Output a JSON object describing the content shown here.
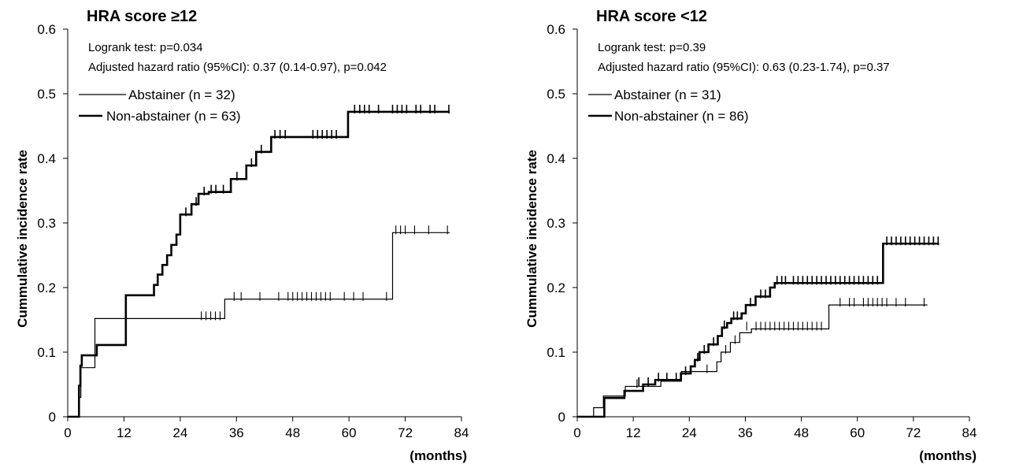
{
  "chart_data": [
    {
      "type": "line",
      "subtype": "step",
      "title": "HRA score ≥12",
      "annotations": [
        "Logrank test:  p=0.034",
        "Adjusted hazard ratio (95%CI):  0.37 (0.14-0.97), p=0.042"
      ],
      "ylabel": "Cummulative incidence rate",
      "xlabel": "(months)",
      "xlim": [
        0,
        84
      ],
      "ylim": [
        0,
        0.6
      ],
      "xticks": [
        0,
        12,
        24,
        36,
        48,
        60,
        72,
        84
      ],
      "yticks": [
        0,
        0.1,
        0.2,
        0.3,
        0.4,
        0.5,
        0.6
      ],
      "xtick_labels": [
        "0",
        "12",
        "24",
        "36",
        "48",
        "60",
        "72",
        "84"
      ],
      "ytick_labels": [
        "0",
        "0.1",
        "0.2",
        "0.3",
        "0.4",
        "0.5",
        "0.6"
      ],
      "grid": false,
      "legend_position": "top-left",
      "series": [
        {
          "name": "Abstainer (n = 32)",
          "style": "thin",
          "x": [
            0,
            2.5,
            2.8,
            3.8,
            4.8,
            5.8,
            33.5,
            69.3,
            81.5
          ],
          "y": [
            0,
            0.03,
            0.076,
            0.076,
            0.076,
            0.152,
            0.182,
            0.285,
            0.285
          ],
          "censored_x": [
            28.5,
            29.5,
            30.5,
            31.5,
            32.5,
            35.5,
            37,
            41,
            45,
            47,
            48,
            49,
            50,
            51,
            52,
            53,
            54,
            55,
            56,
            59,
            61,
            63,
            68,
            70,
            71,
            72,
            74,
            77,
            81
          ],
          "censored_y": [
            0.152,
            0.152,
            0.152,
            0.152,
            0.152,
            0.182,
            0.182,
            0.182,
            0.182,
            0.182,
            0.182,
            0.182,
            0.182,
            0.182,
            0.182,
            0.182,
            0.182,
            0.182,
            0.182,
            0.182,
            0.182,
            0.182,
            0.182,
            0.285,
            0.285,
            0.285,
            0.285,
            0.285,
            0.285
          ]
        },
        {
          "name": "Non-abstainer (n = 63)",
          "style": "thick",
          "x": [
            0,
            2.4,
            2.7,
            3,
            5.7,
            6.2,
            12.4,
            18.4,
            19.2,
            20.2,
            21.2,
            22.1,
            23.2,
            24,
            26.4,
            27.9,
            30.1,
            34.8,
            38.1,
            40.2,
            42.3,
            43.4,
            59.8,
            81.5
          ],
          "y": [
            0,
            0.048,
            0.079,
            0.095,
            0.095,
            0.111,
            0.188,
            0.204,
            0.22,
            0.235,
            0.25,
            0.266,
            0.282,
            0.313,
            0.329,
            0.345,
            0.348,
            0.368,
            0.389,
            0.41,
            0.41,
            0.433,
            0.472,
            0.472
          ],
          "censored_x": [
            25.2,
            27.4,
            29.1,
            30.6,
            31.6,
            33.2,
            36.1,
            39.2,
            41.3,
            44.2,
            45.3,
            46.4,
            52.3,
            53.3,
            54.3,
            55.3,
            56.3,
            57.3,
            61.2,
            62.3,
            63.3,
            64.3,
            66.3,
            69.3,
            70.3,
            71.3,
            72.3,
            74.3,
            75.3,
            77.3,
            78.3,
            81.3
          ],
          "censored_y": [
            0.313,
            0.329,
            0.345,
            0.348,
            0.348,
            0.348,
            0.368,
            0.389,
            0.41,
            0.433,
            0.433,
            0.433,
            0.433,
            0.433,
            0.433,
            0.433,
            0.433,
            0.433,
            0.472,
            0.472,
            0.472,
            0.472,
            0.472,
            0.472,
            0.472,
            0.472,
            0.472,
            0.472,
            0.472,
            0.472,
            0.472,
            0.472
          ]
        }
      ]
    },
    {
      "type": "line",
      "subtype": "step",
      "title": "HRA score <12",
      "annotations": [
        "Logrank test:  p=0.39",
        "Adjusted hazard ratio (95%CI):  0.63 (0.23-1.74), p=0.37"
      ],
      "ylabel": "Cummulative incidence rate",
      "xlabel": "(months)",
      "xlim": [
        0,
        84
      ],
      "ylim": [
        0,
        0.6
      ],
      "xticks": [
        0,
        12,
        24,
        36,
        48,
        60,
        72,
        84
      ],
      "yticks": [
        0,
        0.1,
        0.2,
        0.3,
        0.4,
        0.5,
        0.6
      ],
      "xtick_labels": [
        "0",
        "12",
        "24",
        "36",
        "48",
        "60",
        "72",
        "84"
      ],
      "ytick_labels": [
        "0",
        "0.1",
        "0.2",
        "0.3",
        "0.4",
        "0.5",
        "0.6"
      ],
      "grid": false,
      "legend_position": "top-left",
      "series": [
        {
          "name": "Abstainer (n = 31)",
          "style": "thin",
          "x": [
            0,
            3.5,
            5.6,
            10.3,
            12.3,
            17.9,
            22.3,
            25.2,
            29.9,
            30.8,
            32.8,
            34.8,
            37.3,
            53.9,
            75
          ],
          "y": [
            0,
            0.014,
            0.032,
            0.047,
            0.047,
            0.055,
            0.07,
            0.07,
            0.085,
            0.1,
            0.115,
            0.13,
            0.136,
            0.173,
            0.173
          ],
          "censored_x": [
            12.8,
            27.8,
            31.8,
            33.8,
            36.3,
            38.3,
            39.3,
            40.3,
            41.3,
            42.3,
            43.3,
            44.3,
            45.3,
            46.3,
            47.3,
            48.3,
            49.3,
            50.3,
            51.3,
            52.3,
            56.3,
            58.3,
            59.3,
            61.3,
            62.3,
            63.3,
            64.3,
            65.3,
            66.3,
            68.3,
            70.3,
            74.3
          ],
          "censored_y": [
            0.047,
            0.07,
            0.1,
            0.115,
            0.136,
            0.136,
            0.136,
            0.136,
            0.136,
            0.136,
            0.136,
            0.136,
            0.136,
            0.136,
            0.136,
            0.136,
            0.136,
            0.136,
            0.136,
            0.136,
            0.173,
            0.173,
            0.173,
            0.173,
            0.173,
            0.173,
            0.173,
            0.173,
            0.173,
            0.173,
            0.173,
            0.173
          ]
        },
        {
          "name": "Non-abstainer (n = 86)",
          "style": "thick",
          "x": [
            0,
            5.8,
            10.1,
            14.1,
            16.7,
            22.2,
            24.3,
            25.2,
            26.2,
            28.1,
            30.1,
            31,
            32.1,
            33,
            35.2,
            36.1,
            38.2,
            41.3,
            42.3,
            45.3,
            65.5,
            77.5
          ],
          "y": [
            0,
            0.029,
            0.04,
            0.05,
            0.057,
            0.067,
            0.078,
            0.088,
            0.1,
            0.112,
            0.125,
            0.138,
            0.145,
            0.152,
            0.16,
            0.173,
            0.186,
            0.2,
            0.207,
            0.207,
            0.268,
            0.268
          ],
          "censored_x": [
            13.2,
            15.2,
            17.4,
            19.2,
            21.2,
            23.2,
            25.8,
            27.2,
            29.2,
            31.5,
            33.5,
            34.3,
            37.1,
            39.3,
            40.3,
            42.8,
            43.8,
            44.6,
            46.3,
            47.3,
            48.3,
            49.3,
            50.3,
            51.3,
            52.3,
            53.3,
            54.3,
            55.3,
            56.3,
            57.3,
            58.3,
            59.3,
            60.3,
            61.3,
            62.3,
            63.3,
            64.3,
            66.3,
            67.3,
            68.3,
            69.3,
            70.3,
            71.3,
            72.3,
            73.3,
            74.3,
            75.3,
            76.3,
            77.3
          ],
          "censored_y": [
            0.05,
            0.05,
            0.057,
            0.057,
            0.057,
            0.067,
            0.088,
            0.1,
            0.112,
            0.138,
            0.152,
            0.152,
            0.173,
            0.186,
            0.186,
            0.207,
            0.207,
            0.207,
            0.207,
            0.207,
            0.207,
            0.207,
            0.207,
            0.207,
            0.207,
            0.207,
            0.207,
            0.207,
            0.207,
            0.207,
            0.207,
            0.207,
            0.207,
            0.207,
            0.207,
            0.207,
            0.207,
            0.268,
            0.268,
            0.268,
            0.268,
            0.268,
            0.268,
            0.268,
            0.268,
            0.268,
            0.268,
            0.268,
            0.268
          ]
        }
      ]
    }
  ]
}
